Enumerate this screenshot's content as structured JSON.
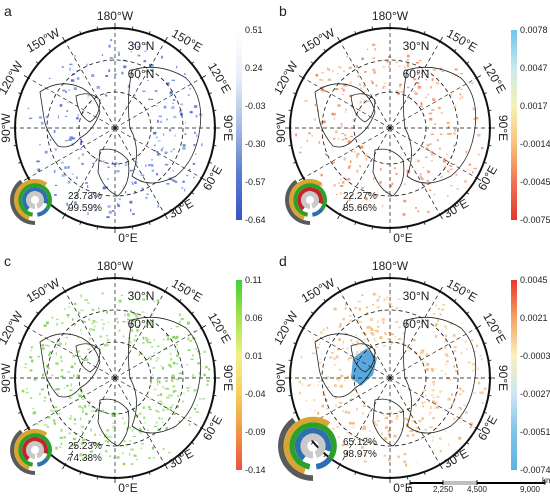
{
  "panels": [
    {
      "label": "a",
      "pct_top": "23.73%",
      "pct_bottom": "99.59%",
      "colorbar": {
        "ticks": [
          "0.51",
          "0.24",
          "-0.03",
          "-0.30",
          "-0.57",
          "-0.64"
        ],
        "colors": [
          "#ffffff",
          "#e8eef8",
          "#a9bde4",
          "#5a7fd0",
          "#3a53c4"
        ]
      },
      "map_color": "#4b6fd6"
    },
    {
      "label": "b",
      "pct_top": "22.27%",
      "pct_bottom": "85.66%",
      "colorbar": {
        "ticks": [
          "0.0078",
          "0.0047",
          "0.0017",
          "-0.0014",
          "-0.0045",
          "-0.0075"
        ],
        "colors": [
          "#6ec6e8",
          "#cbe8f0",
          "#f6f3b4",
          "#f7c27a",
          "#f07452",
          "#e03a2e"
        ]
      },
      "map_color": "#f08a5a"
    },
    {
      "label": "c",
      "pct_top": "25.23%",
      "pct_bottom": "74.38%",
      "colorbar": {
        "ticks": [
          "0.11",
          "0.06",
          "0.01",
          "-0.04",
          "-0.09",
          "-0.14"
        ],
        "colors": [
          "#3dd13b",
          "#a8e24e",
          "#f2f08a",
          "#f7cf5a",
          "#f2944a",
          "#e8533b"
        ]
      },
      "map_color": "#7bd24e"
    },
    {
      "label": "d",
      "pct_top": "65.12%",
      "pct_bottom": "98.97%",
      "colorbar": {
        "ticks": [
          "0.0045",
          "0.0021",
          "-0.0003",
          "-0.0027",
          "-0.0051",
          "-0.0074"
        ],
        "colors": [
          "#e8372c",
          "#f4a364",
          "#f9f0c0",
          "#cfe6f2",
          "#7fc3e8",
          "#5ab3e4"
        ]
      },
      "map_color": "#f2b36b"
    }
  ],
  "graticule": {
    "lon_labels": [
      "180°W",
      "150°W",
      "150°E",
      "120°W",
      "120°E",
      "90°W",
      "90°E",
      "60°E",
      "30°E",
      "0°E"
    ],
    "lat_labels": [
      "30°N",
      "60°N"
    ]
  },
  "scale_bar": {
    "labels": [
      "0",
      "2,250",
      "4,500",
      "9,000"
    ],
    "unit": "km"
  },
  "inset_colors": [
    "#c9c9c9",
    "#2f6fb0",
    "#2aa12a",
    "#d8a530",
    "#5a5a5a",
    "#c0262c"
  ]
}
